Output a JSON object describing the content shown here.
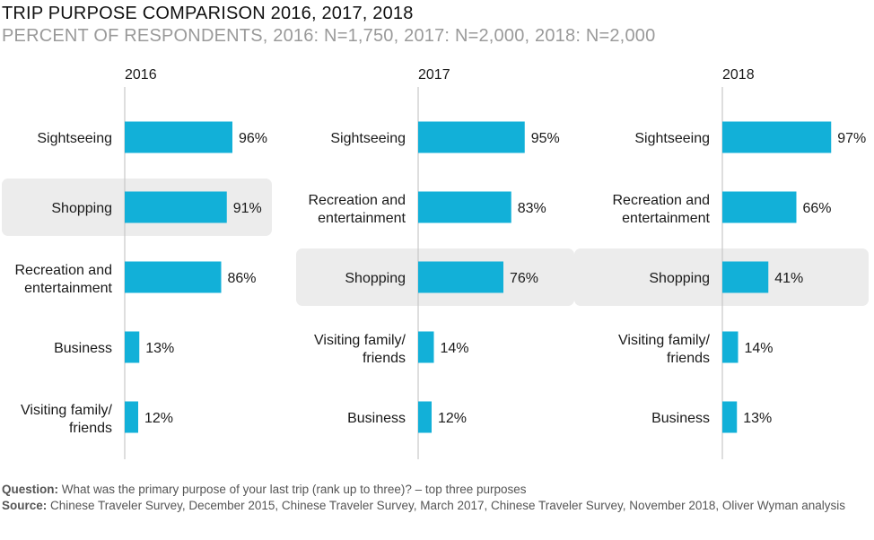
{
  "header": {
    "title": "TRIP PURPOSE COMPARISON 2016, 2017, 2018",
    "subtitle": "PERCENT OF RESPONDENTS, 2016: N=1,750, 2017: N=2,000, 2018: N=2,000"
  },
  "footer": {
    "question_label": "Question:",
    "question_text": " What was the primary purpose of your last trip (rank up to three)? – top three purposes",
    "source_label": "Source:",
    "source_text": " Chinese Traveler Survey, December 2015, Chinese Traveler Survey, March 2017, Chinese Traveler Survey, November 2018, Oliver Wyman analysis"
  },
  "colors": {
    "bar": "#12b0d8",
    "highlight": "#ececec",
    "axis": "#c7c7c7"
  },
  "chart_data": [
    {
      "type": "bar",
      "orientation": "horizontal",
      "title": "2016",
      "highlight": "Shopping",
      "categories": [
        [
          "Sightseeing"
        ],
        [
          "Shopping"
        ],
        [
          "Recreation and",
          "entertainment"
        ],
        [
          "Business"
        ],
        [
          "Visiting family/",
          "friends"
        ]
      ],
      "values": [
        96,
        91,
        86,
        13,
        12
      ],
      "value_labels": [
        "96%",
        "91%",
        "86%",
        "13%",
        "12%"
      ],
      "xlim": [
        0,
        100
      ]
    },
    {
      "type": "bar",
      "orientation": "horizontal",
      "title": "2017",
      "highlight": "Shopping",
      "categories": [
        [
          "Sightseeing"
        ],
        [
          "Recreation and",
          "entertainment"
        ],
        [
          "Shopping"
        ],
        [
          "Visiting family/",
          "friends"
        ],
        [
          "Business"
        ]
      ],
      "values": [
        95,
        83,
        76,
        14,
        12
      ],
      "value_labels": [
        "95%",
        "83%",
        "76%",
        "14%",
        "12%"
      ],
      "xlim": [
        0,
        100
      ]
    },
    {
      "type": "bar",
      "orientation": "horizontal",
      "title": "2018",
      "highlight": "Shopping",
      "categories": [
        [
          "Sightseeing"
        ],
        [
          "Recreation and",
          "entertainment"
        ],
        [
          "Shopping"
        ],
        [
          "Visiting family/",
          "friends"
        ],
        [
          "Business"
        ]
      ],
      "values": [
        97,
        66,
        41,
        14,
        13
      ],
      "value_labels": [
        "97%",
        "66%",
        "41%",
        "14%",
        "13%"
      ],
      "xlim": [
        0,
        100
      ]
    }
  ]
}
